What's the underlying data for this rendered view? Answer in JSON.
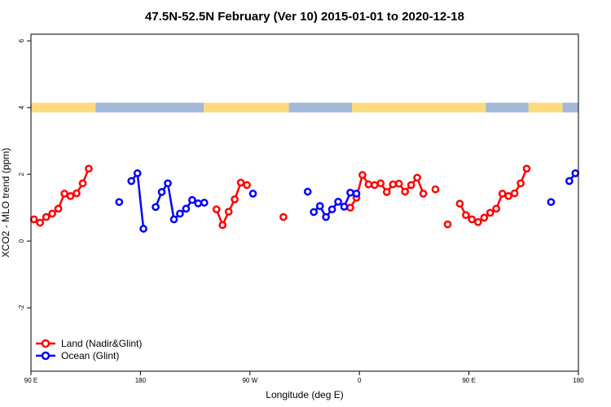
{
  "chart_data": {
    "type": "line",
    "title": "47.5N-52.5N February (Ver 10)   2015-01-01 to 2020-12-18",
    "xlabel": "Longitude (deg E)",
    "ylabel": "XCO2 - MLO trend (ppm)",
    "xlim": [
      90,
      540
    ],
    "ylim": [
      -3.9,
      6.2
    ],
    "x_ticks": [
      {
        "value": 90,
        "label": "90 E"
      },
      {
        "value": 180,
        "label": "180"
      },
      {
        "value": 270,
        "label": "90 W"
      },
      {
        "value": 360,
        "label": "0"
      },
      {
        "value": 450,
        "label": "90 E"
      },
      {
        "value": 540,
        "label": "180"
      }
    ],
    "y_ticks": [
      {
        "value": -2,
        "label": "-2"
      },
      {
        "value": 0,
        "label": "0"
      },
      {
        "value": 2,
        "label": "2"
      },
      {
        "value": 4,
        "label": "4"
      },
      {
        "value": 6,
        "label": "6"
      }
    ],
    "grid": false,
    "legend_position": "bottom-left",
    "surface_band": {
      "y": 4.0,
      "land_color": "#fddb7f",
      "ocean_color": "#a4b9d9",
      "segments": [
        {
          "type": "land",
          "from": 90,
          "to": 143
        },
        {
          "type": "ocean",
          "from": 143,
          "to": 232
        },
        {
          "type": "land",
          "from": 232,
          "to": 302
        },
        {
          "type": "ocean",
          "from": 302,
          "to": 354
        },
        {
          "type": "land",
          "from": 354,
          "to": 464
        },
        {
          "type": "ocean",
          "from": 464,
          "to": 499
        },
        {
          "type": "land",
          "from": 499,
          "to": 527
        },
        {
          "type": "ocean",
          "from": 527,
          "to": 540
        }
      ]
    },
    "series": [
      {
        "name": "Land (Nadir&Glint)",
        "color": "#ff0000",
        "segments": [
          [
            [
              92.5,
              0.65
            ],
            [
              97.5,
              0.55
            ],
            [
              102.5,
              0.72
            ],
            [
              107.5,
              0.82
            ],
            [
              112.5,
              0.97
            ],
            [
              117.5,
              1.42
            ],
            [
              122.5,
              1.35
            ],
            [
              127.5,
              1.43
            ],
            [
              132.5,
              1.73
            ],
            [
              137.5,
              2.17
            ]
          ],
          [
            [
              242.5,
              0.95
            ],
            [
              247.5,
              0.48
            ],
            [
              252.5,
              0.88
            ],
            [
              257.5,
              1.25
            ],
            [
              262.5,
              1.75
            ],
            [
              267.5,
              1.68
            ]
          ],
          [
            [
              297.5,
              0.72
            ]
          ],
          [
            [
              352.5,
              1.0
            ],
            [
              357.5,
              1.3
            ],
            [
              362.5,
              1.98
            ],
            [
              367.5,
              1.7
            ],
            [
              372.5,
              1.68
            ],
            [
              377.5,
              1.73
            ],
            [
              382.5,
              1.47
            ],
            [
              387.5,
              1.7
            ],
            [
              392.5,
              1.72
            ],
            [
              397.5,
              1.48
            ],
            [
              402.5,
              1.68
            ],
            [
              407.5,
              1.9
            ],
            [
              412.5,
              1.42
            ]
          ],
          [
            [
              422.5,
              1.55
            ]
          ],
          [
            [
              432.5,
              0.5
            ]
          ],
          [
            [
              442.5,
              1.12
            ],
            [
              447.5,
              0.78
            ],
            [
              452.5,
              0.65
            ],
            [
              457.5,
              0.57
            ],
            [
              462.5,
              0.7
            ],
            [
              467.5,
              0.85
            ],
            [
              472.5,
              0.97
            ],
            [
              477.5,
              1.42
            ],
            [
              482.5,
              1.35
            ],
            [
              487.5,
              1.43
            ],
            [
              492.5,
              1.73
            ],
            [
              497.5,
              2.17
            ]
          ]
        ]
      },
      {
        "name": "Ocean (Glint)",
        "color": "#0000ff",
        "segments": [
          [
            [
              162.5,
              1.17
            ]
          ],
          [
            [
              172.5,
              1.8
            ],
            [
              177.5,
              2.03
            ],
            [
              182.5,
              0.37
            ]
          ],
          [
            [
              192.5,
              1.02
            ],
            [
              197.5,
              1.47
            ],
            [
              202.5,
              1.73
            ],
            [
              207.5,
              0.65
            ],
            [
              212.5,
              0.82
            ],
            [
              217.5,
              0.97
            ],
            [
              222.5,
              1.23
            ],
            [
              227.5,
              1.13
            ]
          ],
          [
            [
              232.5,
              1.15
            ]
          ],
          [
            [
              272.5,
              1.42
            ]
          ],
          [
            [
              317.5,
              1.48
            ]
          ],
          [
            [
              322.5,
              0.87
            ],
            [
              327.5,
              1.05
            ],
            [
              332.5,
              0.72
            ],
            [
              337.5,
              0.95
            ],
            [
              342.5,
              1.18
            ],
            [
              347.5,
              1.03
            ],
            [
              352.5,
              1.45
            ],
            [
              357.5,
              1.42
            ]
          ],
          [
            [
              517.5,
              1.17
            ]
          ],
          [
            [
              532.5,
              1.8
            ],
            [
              537.5,
              2.03
            ]
          ]
        ]
      }
    ]
  }
}
